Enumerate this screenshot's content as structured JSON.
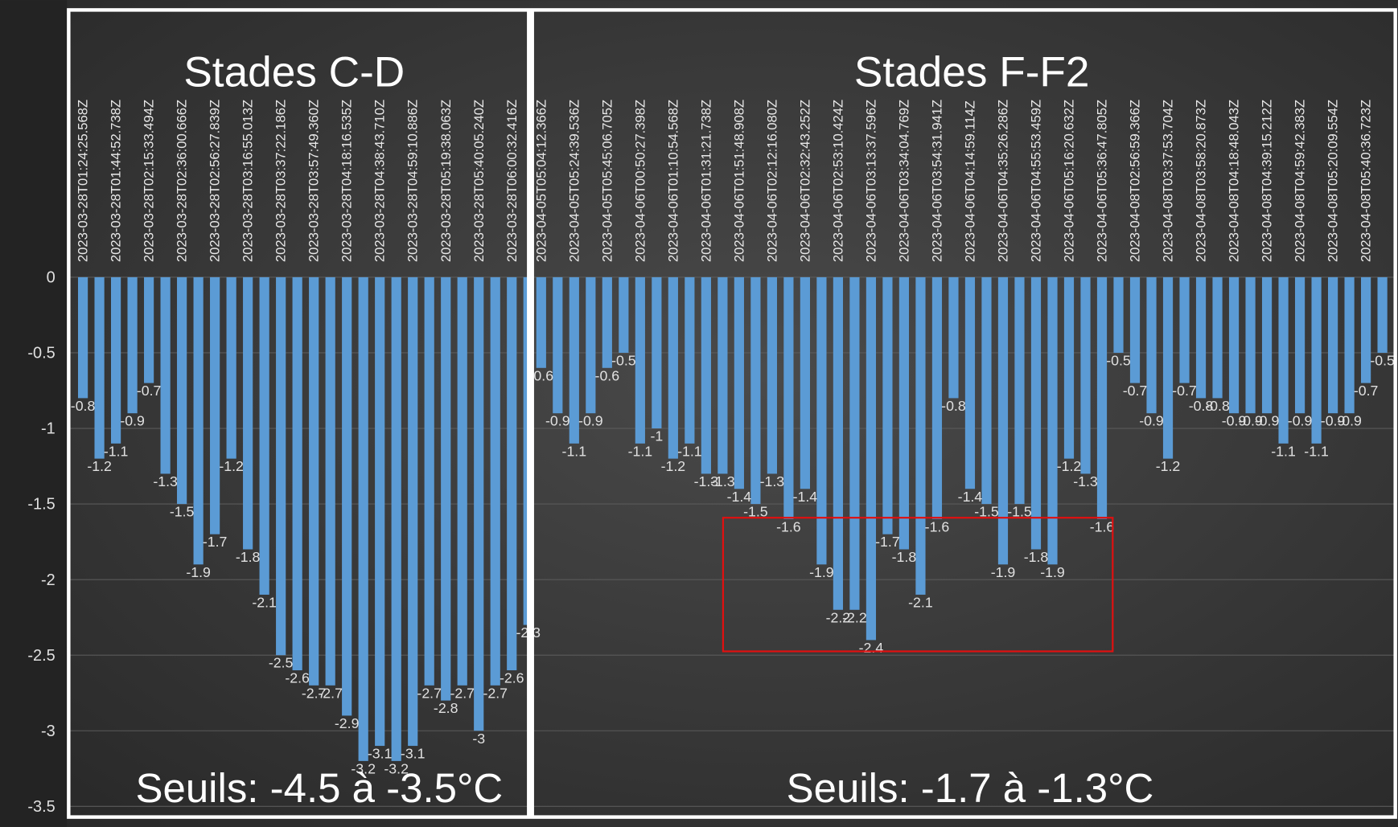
{
  "chart_data": {
    "type": "bar",
    "color": "#5b9bd5",
    "ylim": [
      -3.5,
      0
    ],
    "yticks": [
      0,
      -0.5,
      -1,
      -1.5,
      -2,
      -2.5,
      -3,
      -3.5
    ],
    "grid": true,
    "annotations": [
      "Stades C-D",
      "Stades F-F2",
      "Seuils: -4.5 à -3.5°C",
      "Seuils: -1.7 à -1.3°C"
    ],
    "categories": [
      "2023-03-28T01:24:25.568Z",
      null,
      "2023-03-28T01:44:52.738Z",
      null,
      "2023-03-28T02:15:33.494Z",
      null,
      "2023-03-28T02:36:00.666Z",
      null,
      "2023-03-28T02:56:27.839Z",
      null,
      "2023-03-28T03:16:55.013Z",
      null,
      "2023-03-28T03:37:22.186Z",
      null,
      "2023-03-28T03:57:49.360Z",
      null,
      "2023-03-28T04:18:16.535Z",
      null,
      "2023-03-28T04:38:43.710Z",
      null,
      "2023-03-28T04:59:10.886Z",
      null,
      "2023-03-28T05:19:38.063Z",
      null,
      "2023-03-28T05:40:05.240Z",
      null,
      "2023-03-28T06:00:32.416Z",
      null,
      "2023-04-05T05:04:12.366Z",
      null,
      "2023-04-05T05:24:39.536Z",
      null,
      "2023-04-05T05:45:06.705Z",
      null,
      "2023-04-06T00:50:27.398Z",
      null,
      "2023-04-06T01:10:54.568Z",
      null,
      "2023-04-06T01:31:21.738Z",
      null,
      "2023-04-06T01:51:48.908Z",
      null,
      "2023-04-06T02:12:16.080Z",
      null,
      "2023-04-06T02:32:43.252Z",
      null,
      "2023-04-06T02:53:10.424Z",
      null,
      "2023-04-06T03:13:37.596Z",
      null,
      "2023-04-06T03:34:04.769Z",
      null,
      "2023-04-06T03:54:31.941Z",
      null,
      "2023-04-06T04:14:59.114Z",
      null,
      "2023-04-06T04:35:26.286Z",
      null,
      "2023-04-06T04:55:53.459Z",
      null,
      "2023-04-06T05:16:20.632Z",
      null,
      "2023-04-06T05:36:47.805Z",
      null,
      "2023-04-08T02:56:59.366Z",
      null,
      "2023-04-08T03:37:53.704Z",
      null,
      "2023-04-08T03:58:20.873Z",
      null,
      "2023-04-08T04:18:48.043Z",
      null,
      "2023-04-08T04:39:15.212Z",
      null,
      "2023-04-08T04:59:42.383Z",
      null,
      "2023-04-08T05:20:09.554Z",
      null,
      "2023-04-08T05:40:36.723Z",
      null
    ],
    "values": [
      -0.8,
      -1.2,
      -1.1,
      -0.9,
      -0.7,
      -1.3,
      -1.5,
      -1.9,
      -1.7,
      -1.2,
      -1.8,
      -2.1,
      -2.5,
      -2.6,
      -2.7,
      -2.7,
      -2.9,
      -3.2,
      -3.1,
      -3.2,
      -3.1,
      -2.7,
      -2.8,
      -2.7,
      -3,
      -2.7,
      -2.6,
      -2.3,
      -0.6,
      -0.9,
      -1.1,
      -0.9,
      -0.6,
      -0.5,
      -1.1,
      -1,
      -1.2,
      -1.1,
      -1.3,
      -1.3,
      -1.4,
      -1.5,
      -1.3,
      -1.6,
      -1.4,
      -1.9,
      -2.2,
      -2.2,
      -2.4,
      -1.7,
      -1.8,
      -2.1,
      -1.6,
      -0.8,
      -1.4,
      -1.5,
      -1.9,
      -1.5,
      -1.8,
      -1.9,
      -1.2,
      -1.3,
      -1.6,
      -0.5,
      -0.7,
      -0.9,
      -1.2,
      -0.7,
      -0.8,
      -0.8,
      -0.9,
      -0.9,
      -0.9,
      -1.1,
      -0.9,
      -1.1,
      -0.9,
      -0.9,
      -0.7,
      -0.5
    ]
  }
}
